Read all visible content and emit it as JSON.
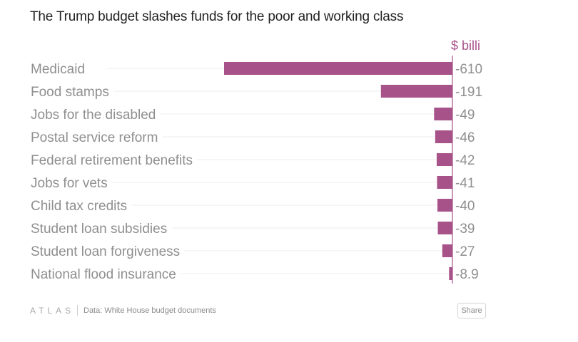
{
  "chart_data": {
    "type": "bar",
    "orientation": "horizontal",
    "title": "The Trump budget slashes funds for the poor and working class",
    "unit_label": "$ billions",
    "unit_label_visible": "$ billi",
    "categories": [
      "Medicaid",
      "Food stamps",
      "Jobs for the disabled",
      "Postal service reform",
      "Federal retirement benefits",
      "Jobs for vets",
      "Child tax credits",
      "Student loan subsidies",
      "Student loan forgiveness",
      "National flood insurance"
    ],
    "values": [
      -610,
      -191,
      -49,
      -46,
      -42,
      -41,
      -40,
      -39,
      -27,
      -8.9
    ],
    "value_labels": [
      "-610",
      "-191",
      "-49",
      "-46",
      "-42",
      "-41",
      "-40",
      "-39",
      "-27",
      "-8.9"
    ],
    "xlim": [
      -1000,
      0
    ],
    "bar_color": "#a8528a",
    "label_color": "#8f8f8f",
    "value_label_color": "#8f8f8f",
    "unit_label_color": "#a8528a",
    "gridlines": true
  },
  "footer": {
    "logo": "ATLAS",
    "source_prefix": "Data:",
    "source": "White House budget documents",
    "share_label": "Share"
  }
}
